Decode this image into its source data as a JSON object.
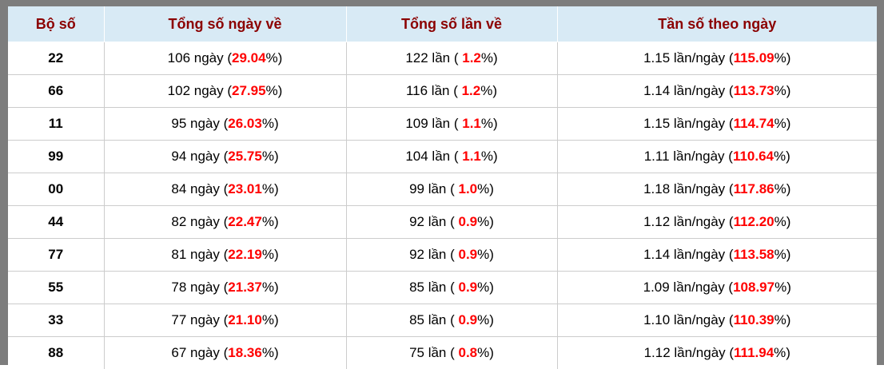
{
  "table": {
    "headers": [
      "Bộ số",
      "Tổng số ngày về",
      "Tổng số lần về",
      "Tần số theo ngày"
    ],
    "rows": [
      {
        "set": "22",
        "days": {
          "pre": "106 ngày (",
          "pct": "29.04",
          "post": "%)"
        },
        "times": {
          "pre": "122 lần ( ",
          "pct": "1.2",
          "post": "%)"
        },
        "freq": {
          "pre": "1.15 lần/ngày (",
          "pct": "115.09",
          "post": "%)"
        }
      },
      {
        "set": "66",
        "days": {
          "pre": "102 ngày (",
          "pct": "27.95",
          "post": "%)"
        },
        "times": {
          "pre": "116 lần ( ",
          "pct": "1.2",
          "post": "%)"
        },
        "freq": {
          "pre": "1.14 lần/ngày (",
          "pct": "113.73",
          "post": "%)"
        }
      },
      {
        "set": "11",
        "days": {
          "pre": "95 ngày (",
          "pct": "26.03",
          "post": "%)"
        },
        "times": {
          "pre": "109 lần ( ",
          "pct": "1.1",
          "post": "%)"
        },
        "freq": {
          "pre": "1.15 lần/ngày (",
          "pct": "114.74",
          "post": "%)"
        }
      },
      {
        "set": "99",
        "days": {
          "pre": "94 ngày (",
          "pct": "25.75",
          "post": "%)"
        },
        "times": {
          "pre": "104 lần ( ",
          "pct": "1.1",
          "post": "%)"
        },
        "freq": {
          "pre": "1.11 lần/ngày (",
          "pct": "110.64",
          "post": "%)"
        }
      },
      {
        "set": "00",
        "days": {
          "pre": "84 ngày (",
          "pct": "23.01",
          "post": "%)"
        },
        "times": {
          "pre": "99 lần ( ",
          "pct": "1.0",
          "post": "%)"
        },
        "freq": {
          "pre": "1.18 lần/ngày (",
          "pct": "117.86",
          "post": "%)"
        }
      },
      {
        "set": "44",
        "days": {
          "pre": "82 ngày (",
          "pct": "22.47",
          "post": "%)"
        },
        "times": {
          "pre": "92 lần ( ",
          "pct": "0.9",
          "post": "%)"
        },
        "freq": {
          "pre": "1.12 lần/ngày (",
          "pct": "112.20",
          "post": "%)"
        }
      },
      {
        "set": "77",
        "days": {
          "pre": "81 ngày (",
          "pct": "22.19",
          "post": "%)"
        },
        "times": {
          "pre": "92 lần ( ",
          "pct": "0.9",
          "post": "%)"
        },
        "freq": {
          "pre": "1.14 lần/ngày (",
          "pct": "113.58",
          "post": "%)"
        }
      },
      {
        "set": "55",
        "days": {
          "pre": "78 ngày (",
          "pct": "21.37",
          "post": "%)"
        },
        "times": {
          "pre": "85 lần ( ",
          "pct": "0.9",
          "post": "%)"
        },
        "freq": {
          "pre": "1.09 lần/ngày (",
          "pct": "108.97",
          "post": "%)"
        }
      },
      {
        "set": "33",
        "days": {
          "pre": "77 ngày (",
          "pct": "21.10",
          "post": "%)"
        },
        "times": {
          "pre": "85 lần ( ",
          "pct": "0.9",
          "post": "%)"
        },
        "freq": {
          "pre": "1.10 lần/ngày (",
          "pct": "110.39",
          "post": "%)"
        }
      },
      {
        "set": "88",
        "days": {
          "pre": "67 ngày (",
          "pct": "18.36",
          "post": "%)"
        },
        "times": {
          "pre": "75 lần ( ",
          "pct": "0.8",
          "post": "%)"
        },
        "freq": {
          "pre": "1.12 lần/ngày (",
          "pct": "111.94",
          "post": "%)"
        }
      }
    ]
  },
  "colors": {
    "frame": "#7d7d7d",
    "header_bg": "#d8eaf5",
    "header_text": "#8b0000",
    "highlight_red": "#ff0000",
    "cell_border": "#cccccc"
  },
  "chart_data": {
    "type": "table",
    "columns": [
      "Bộ số",
      "Tổng số ngày về",
      "Tổng số lần về",
      "Tần số theo ngày"
    ],
    "rows": [
      [
        "22",
        "106 ngày (29.04%)",
        "122 lần ( 1.2%)",
        "1.15 lần/ngày (115.09%)"
      ],
      [
        "66",
        "102 ngày (27.95%)",
        "116 lần ( 1.2%)",
        "1.14 lần/ngày (113.73%)"
      ],
      [
        "11",
        "95 ngày (26.03%)",
        "109 lần ( 1.1%)",
        "1.15 lần/ngày (114.74%)"
      ],
      [
        "99",
        "94 ngày (25.75%)",
        "104 lần ( 1.1%)",
        "1.11 lần/ngày (110.64%)"
      ],
      [
        "00",
        "84 ngày (23.01%)",
        "99 lần ( 1.0%)",
        "1.18 lần/ngày (117.86%)"
      ],
      [
        "44",
        "82 ngày (22.47%)",
        "92 lần ( 0.9%)",
        "1.12 lần/ngày (112.20%)"
      ],
      [
        "77",
        "81 ngày (22.19%)",
        "92 lần ( 0.9%)",
        "1.14 lần/ngày (113.58%)"
      ],
      [
        "55",
        "78 ngày (21.37%)",
        "85 lần ( 0.9%)",
        "1.09 lần/ngày (108.97%)"
      ],
      [
        "33",
        "77 ngày (21.10%)",
        "85 lần ( 0.9%)",
        "1.10 lần/ngày (110.39%)"
      ],
      [
        "88",
        "67 ngày (18.36%)",
        "75 lần ( 0.8%)",
        "1.12 lần/ngày (111.94%)"
      ]
    ],
    "numeric": {
      "sets": [
        "22",
        "66",
        "11",
        "99",
        "00",
        "44",
        "77",
        "55",
        "33",
        "88"
      ],
      "total_days": [
        106,
        102,
        95,
        94,
        84,
        82,
        81,
        78,
        77,
        67
      ],
      "total_days_pct": [
        29.04,
        27.95,
        26.03,
        25.75,
        23.01,
        22.47,
        22.19,
        21.37,
        21.1,
        18.36
      ],
      "total_times": [
        122,
        116,
        109,
        104,
        99,
        92,
        92,
        85,
        85,
        75
      ],
      "total_times_pct": [
        1.2,
        1.2,
        1.1,
        1.1,
        1.0,
        0.9,
        0.9,
        0.9,
        0.9,
        0.8
      ],
      "freq_per_day": [
        1.15,
        1.14,
        1.15,
        1.11,
        1.18,
        1.12,
        1.14,
        1.09,
        1.1,
        1.12
      ],
      "freq_per_day_pct": [
        115.09,
        113.73,
        114.74,
        110.64,
        117.86,
        112.2,
        113.58,
        108.97,
        110.39,
        111.94
      ]
    }
  }
}
